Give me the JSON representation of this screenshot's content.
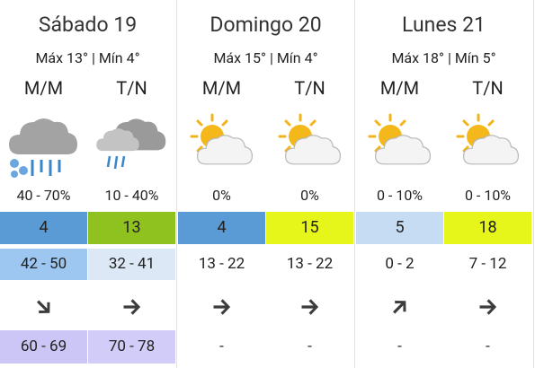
{
  "days": [
    {
      "title": "Sábado 19",
      "temps": "Máx 13° | Mín 4°",
      "periods": [
        {
          "label": "M/M",
          "precipitation": "40 - 70%",
          "index": "4",
          "range": "42 - 50",
          "gusts": "60 - 69"
        },
        {
          "label": "T/N",
          "precipitation": "10 - 40%",
          "index": "13",
          "range": "32 - 41",
          "gusts": "70 - 78"
        }
      ]
    },
    {
      "title": "Domingo 20",
      "temps": "Máx 15° | Mín 4°",
      "periods": [
        {
          "label": "M/M",
          "precipitation": "0%",
          "index": "4",
          "range": "13 - 22",
          "gusts": "-"
        },
        {
          "label": "T/N",
          "precipitation": "0%",
          "index": "15",
          "range": "13 - 22",
          "gusts": "-"
        }
      ]
    },
    {
      "title": "Lunes 21",
      "temps": "Máx 18° | Mín 5°",
      "periods": [
        {
          "label": "M/M",
          "precipitation": "0 - 10%",
          "index": "5",
          "range": "0 - 2",
          "gusts": "-"
        },
        {
          "label": "T/N",
          "precipitation": "0 - 10%",
          "index": "18",
          "range": "7 - 12",
          "gusts": "-"
        }
      ]
    }
  ]
}
